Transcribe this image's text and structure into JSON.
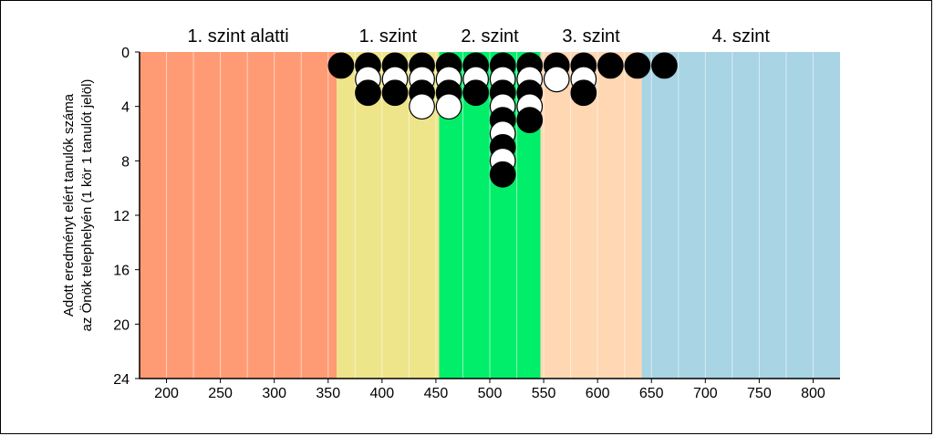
{
  "chart_data": {
    "type": "scatter",
    "ylabel_lines": [
      "Adott eredményt elért tanulók száma",
      "az Önök telephelyén (1 kör 1 tanulót jelöl)"
    ],
    "xlim": [
      175,
      825
    ],
    "ylim": [
      0,
      24
    ],
    "y_inverted": true,
    "xticks": [
      200,
      250,
      300,
      350,
      400,
      450,
      500,
      550,
      600,
      650,
      700,
      750,
      800
    ],
    "yticks": [
      0,
      4,
      8,
      12,
      16,
      20,
      24
    ],
    "grid": "vertical",
    "bands": [
      {
        "label": "1. szint alatti",
        "from": 175,
        "to": 358,
        "color": "#FF9B74"
      },
      {
        "label": "1. szint",
        "from": 358,
        "to": 453,
        "color": "#EEE48A"
      },
      {
        "label": "2. szint",
        "from": 453,
        "to": 547,
        "color": "#00EE6A"
      },
      {
        "label": "3. szint",
        "from": 547,
        "to": 641,
        "color": "#FFD7B2"
      },
      {
        "label": "4. szint",
        "from": 641,
        "to": 825,
        "color": "#A8D4E4"
      }
    ],
    "marker_colors": {
      "black": "#000000",
      "white": "#ffffff"
    },
    "columns": [
      {
        "x": 362,
        "stack": [
          "black"
        ]
      },
      {
        "x": 387,
        "stack": [
          "black",
          "white",
          "black"
        ]
      },
      {
        "x": 412,
        "stack": [
          "black",
          "white",
          "black"
        ]
      },
      {
        "x": 437,
        "stack": [
          "black",
          "white",
          "black",
          "white"
        ]
      },
      {
        "x": 462,
        "stack": [
          "black",
          "white",
          "black",
          "white"
        ]
      },
      {
        "x": 487,
        "stack": [
          "black",
          "white",
          "black"
        ]
      },
      {
        "x": 512,
        "stack": [
          "black",
          "white",
          "black",
          "white",
          "black",
          "white",
          "black",
          "white",
          "black"
        ]
      },
      {
        "x": 537,
        "stack": [
          "black",
          "white",
          "black",
          "white",
          "black"
        ]
      },
      {
        "x": 562,
        "stack": [
          "black",
          "white"
        ]
      },
      {
        "x": 587,
        "stack": [
          "black",
          "white",
          "black"
        ]
      },
      {
        "x": 612,
        "stack": [
          "black"
        ]
      },
      {
        "x": 637,
        "stack": [
          "black"
        ]
      },
      {
        "x": 662,
        "stack": [
          "black"
        ]
      }
    ]
  }
}
